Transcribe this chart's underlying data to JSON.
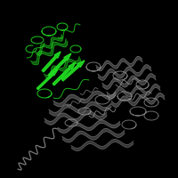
{
  "background_color": "#000000",
  "fig_width": 2.0,
  "fig_height": 2.0,
  "dpi": 100,
  "green_color": "#22dd22",
  "gray_color": "#999999",
  "light_gray": "#bbbbbb",
  "seed": 123
}
